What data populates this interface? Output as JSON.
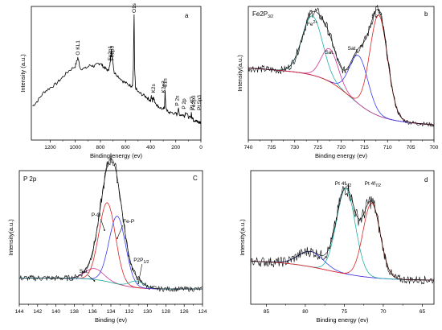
{
  "chart_data": [
    {
      "type": "line",
      "panel": "a",
      "title": "",
      "xlabel": "Binding energy (ev)",
      "ylabel": "Intensity (a.u.)",
      "xlim": [
        1350,
        0
      ],
      "xticks": [
        "1200",
        "1000",
        "800",
        "600",
        "400",
        "200",
        "0"
      ],
      "xtick_values": [
        1200,
        1000,
        800,
        600,
        400,
        200,
        0
      ],
      "series": [
        {
          "color": "#000000",
          "x": [
            1340,
            1300,
            1250,
            1200,
            1150,
            1100,
            1050,
            1000,
            980,
            960,
            920,
            880,
            850,
            820,
            800,
            780,
            760,
            740,
            725,
            712,
            705,
            690,
            660,
            620,
            590,
            560,
            545,
            538,
            532,
            528,
            520,
            500,
            470,
            440,
            420,
            400,
            395,
            385,
            380,
            370,
            350,
            330,
            300,
            290,
            285,
            280,
            265,
            250,
            230,
            200,
            190,
            180,
            170,
            150,
            130,
            120,
            100,
            80,
            76,
            72,
            65,
            60,
            50,
            40,
            30,
            20,
            10,
            0
          ],
          "y": [
            0.15,
            0.2,
            0.28,
            0.32,
            0.36,
            0.42,
            0.48,
            0.52,
            0.6,
            0.5,
            0.5,
            0.53,
            0.52,
            0.54,
            0.55,
            0.52,
            0.5,
            0.48,
            0.52,
            0.68,
            0.6,
            0.46,
            0.43,
            0.38,
            0.36,
            0.34,
            0.34,
            0.5,
            1.0,
            0.5,
            0.32,
            0.28,
            0.26,
            0.24,
            0.22,
            0.2,
            0.24,
            0.2,
            0.24,
            0.2,
            0.16,
            0.14,
            0.12,
            0.14,
            0.3,
            0.14,
            0.1,
            0.09,
            0.09,
            0.08,
            0.07,
            0.13,
            0.07,
            0.07,
            0.06,
            0.1,
            0.05,
            0.04,
            0.09,
            0.04,
            0.05,
            0.02,
            0.02,
            0.01,
            0.01,
            0.0,
            0.0,
            0.0
          ]
        }
      ],
      "annotations": [
        {
          "text": "O1s",
          "x": 532
        },
        {
          "text": "O KL1",
          "x": 980
        },
        {
          "text": "Fe2p1",
          "x": 722
        },
        {
          "text": "Fe2p3",
          "x": 708
        },
        {
          "text": "K2s",
          "x": 378
        },
        {
          "text": "K2p3",
          "x": 296
        },
        {
          "text": "C1s",
          "x": 284
        },
        {
          "text": "P 2s",
          "x": 190
        },
        {
          "text": "P 2p",
          "x": 133
        },
        {
          "text": "Pt 4f7",
          "x": 71
        },
        {
          "text": "Fe2p3",
          "x": 56
        },
        {
          "text": "Pt 5p3",
          "x": 52
        }
      ]
    },
    {
      "type": "line",
      "panel": "b",
      "title": "Fe2P3/2",
      "title_main": "Fe2P",
      "title_sub": "3/2",
      "xlabel": "Binding energy (ev)",
      "ylabel": "Intensity(a.u.)",
      "xlim": [
        740,
        700
      ],
      "xticks": [
        "740",
        "735",
        "730",
        "725",
        "720",
        "715",
        "710",
        "705",
        "700"
      ],
      "xtick_values": [
        740,
        735,
        730,
        725,
        720,
        715,
        710,
        705,
        700
      ],
      "series": [
        {
          "kind": "raw",
          "color": "#000000"
        },
        {
          "kind": "envelope",
          "color": "#000000"
        },
        {
          "kind": "background",
          "color": "#b5a030"
        },
        {
          "kind": "Fe2+ peak",
          "color": "#20b2aa",
          "center": 726.2,
          "height": 0.54,
          "sigma": 2.2
        },
        {
          "kind": "Sat. peak",
          "color": "#cc3399",
          "center": 722.5,
          "height": 0.3,
          "sigma": 1.8
        },
        {
          "kind": "Sat. peak",
          "color": "#3a3af0",
          "center": 716.2,
          "height": 0.44,
          "sigma": 2.0
        },
        {
          "kind": "Fe3+ peak",
          "color": "#e02020",
          "center": 711.9,
          "height": 0.92,
          "sigma": 1.9
        }
      ],
      "annotations": [
        {
          "text": "Fe",
          "sup": "2+",
          "x": 726
        },
        {
          "text": "Sat.",
          "x": 721.5
        },
        {
          "text": "Sat",
          "x": 716.5
        },
        {
          "text": "Fe",
          "sup": "3+",
          "x": 712
        }
      ]
    },
    {
      "type": "line",
      "panel": "C",
      "title": "P 2p",
      "xlabel": "Binding (ev)",
      "ylabel": "Intensity(a.u.)",
      "xlim": [
        144,
        124
      ],
      "xticks": [
        "144",
        "142",
        "140",
        "138",
        "136",
        "134",
        "132",
        "130",
        "128",
        "126",
        "124"
      ],
      "xtick_values": [
        144,
        142,
        140,
        138,
        136,
        134,
        132,
        130,
        128,
        126,
        124
      ],
      "series": [
        {
          "kind": "raw",
          "color": "#000000"
        },
        {
          "kind": "envelope",
          "color": "#000000"
        },
        {
          "kind": "background",
          "color": "#b5a030"
        },
        {
          "kind": "Sat. peak",
          "color": "#cc3399",
          "center": 135.8,
          "height": 0.1,
          "sigma": 1.0
        },
        {
          "kind": "P-O peak",
          "color": "#e02020",
          "center": 134.4,
          "height": 0.72,
          "sigma": 0.9
        },
        {
          "kind": "Fe-P peak",
          "color": "#3a3af0",
          "center": 133.3,
          "height": 0.62,
          "sigma": 0.9
        },
        {
          "kind": "P2P1/2 peak",
          "color": "#20b2aa",
          "center": 131.2,
          "height": 0.06,
          "sigma": 0.8
        }
      ],
      "annotations": [
        {
          "text": "P-O",
          "x": 135
        },
        {
          "text": "Fe-P",
          "x": 132.6
        },
        {
          "text": "Sat.",
          "x": 137
        },
        {
          "text": "P2P",
          "sub": "1/2",
          "x": 130.8
        }
      ]
    },
    {
      "type": "line",
      "panel": "d",
      "title": "",
      "xlabel": "Binding energy (ev)",
      "ylabel": "Intensity(a.u.)",
      "xlim": [
        87,
        63.5
      ],
      "xticks": [
        "85",
        "80",
        "75",
        "70",
        "65"
      ],
      "xtick_values": [
        85,
        80,
        75,
        70,
        65
      ],
      "series": [
        {
          "kind": "raw",
          "color": "#000000"
        },
        {
          "kind": "envelope",
          "color": "#000000"
        },
        {
          "kind": "background",
          "color": "#cc3399"
        },
        {
          "kind": "satellite",
          "color": "#3a3af0",
          "center": 79.3,
          "height": 0.14,
          "sigma": 1.6
        },
        {
          "kind": "Pt 4f5/2",
          "color": "#20b2aa",
          "center": 74.8,
          "height": 0.78,
          "sigma": 1.2
        },
        {
          "kind": "Pt 4f7/2",
          "color": "#e02020",
          "center": 71.5,
          "height": 0.68,
          "sigma": 1.1
        }
      ],
      "annotations": [
        {
          "text": "Pt 4f",
          "sub": "5/2",
          "x": 74.8
        },
        {
          "text": "Pt 4f",
          "sub": "7/2",
          "x": 71.5
        }
      ]
    }
  ]
}
